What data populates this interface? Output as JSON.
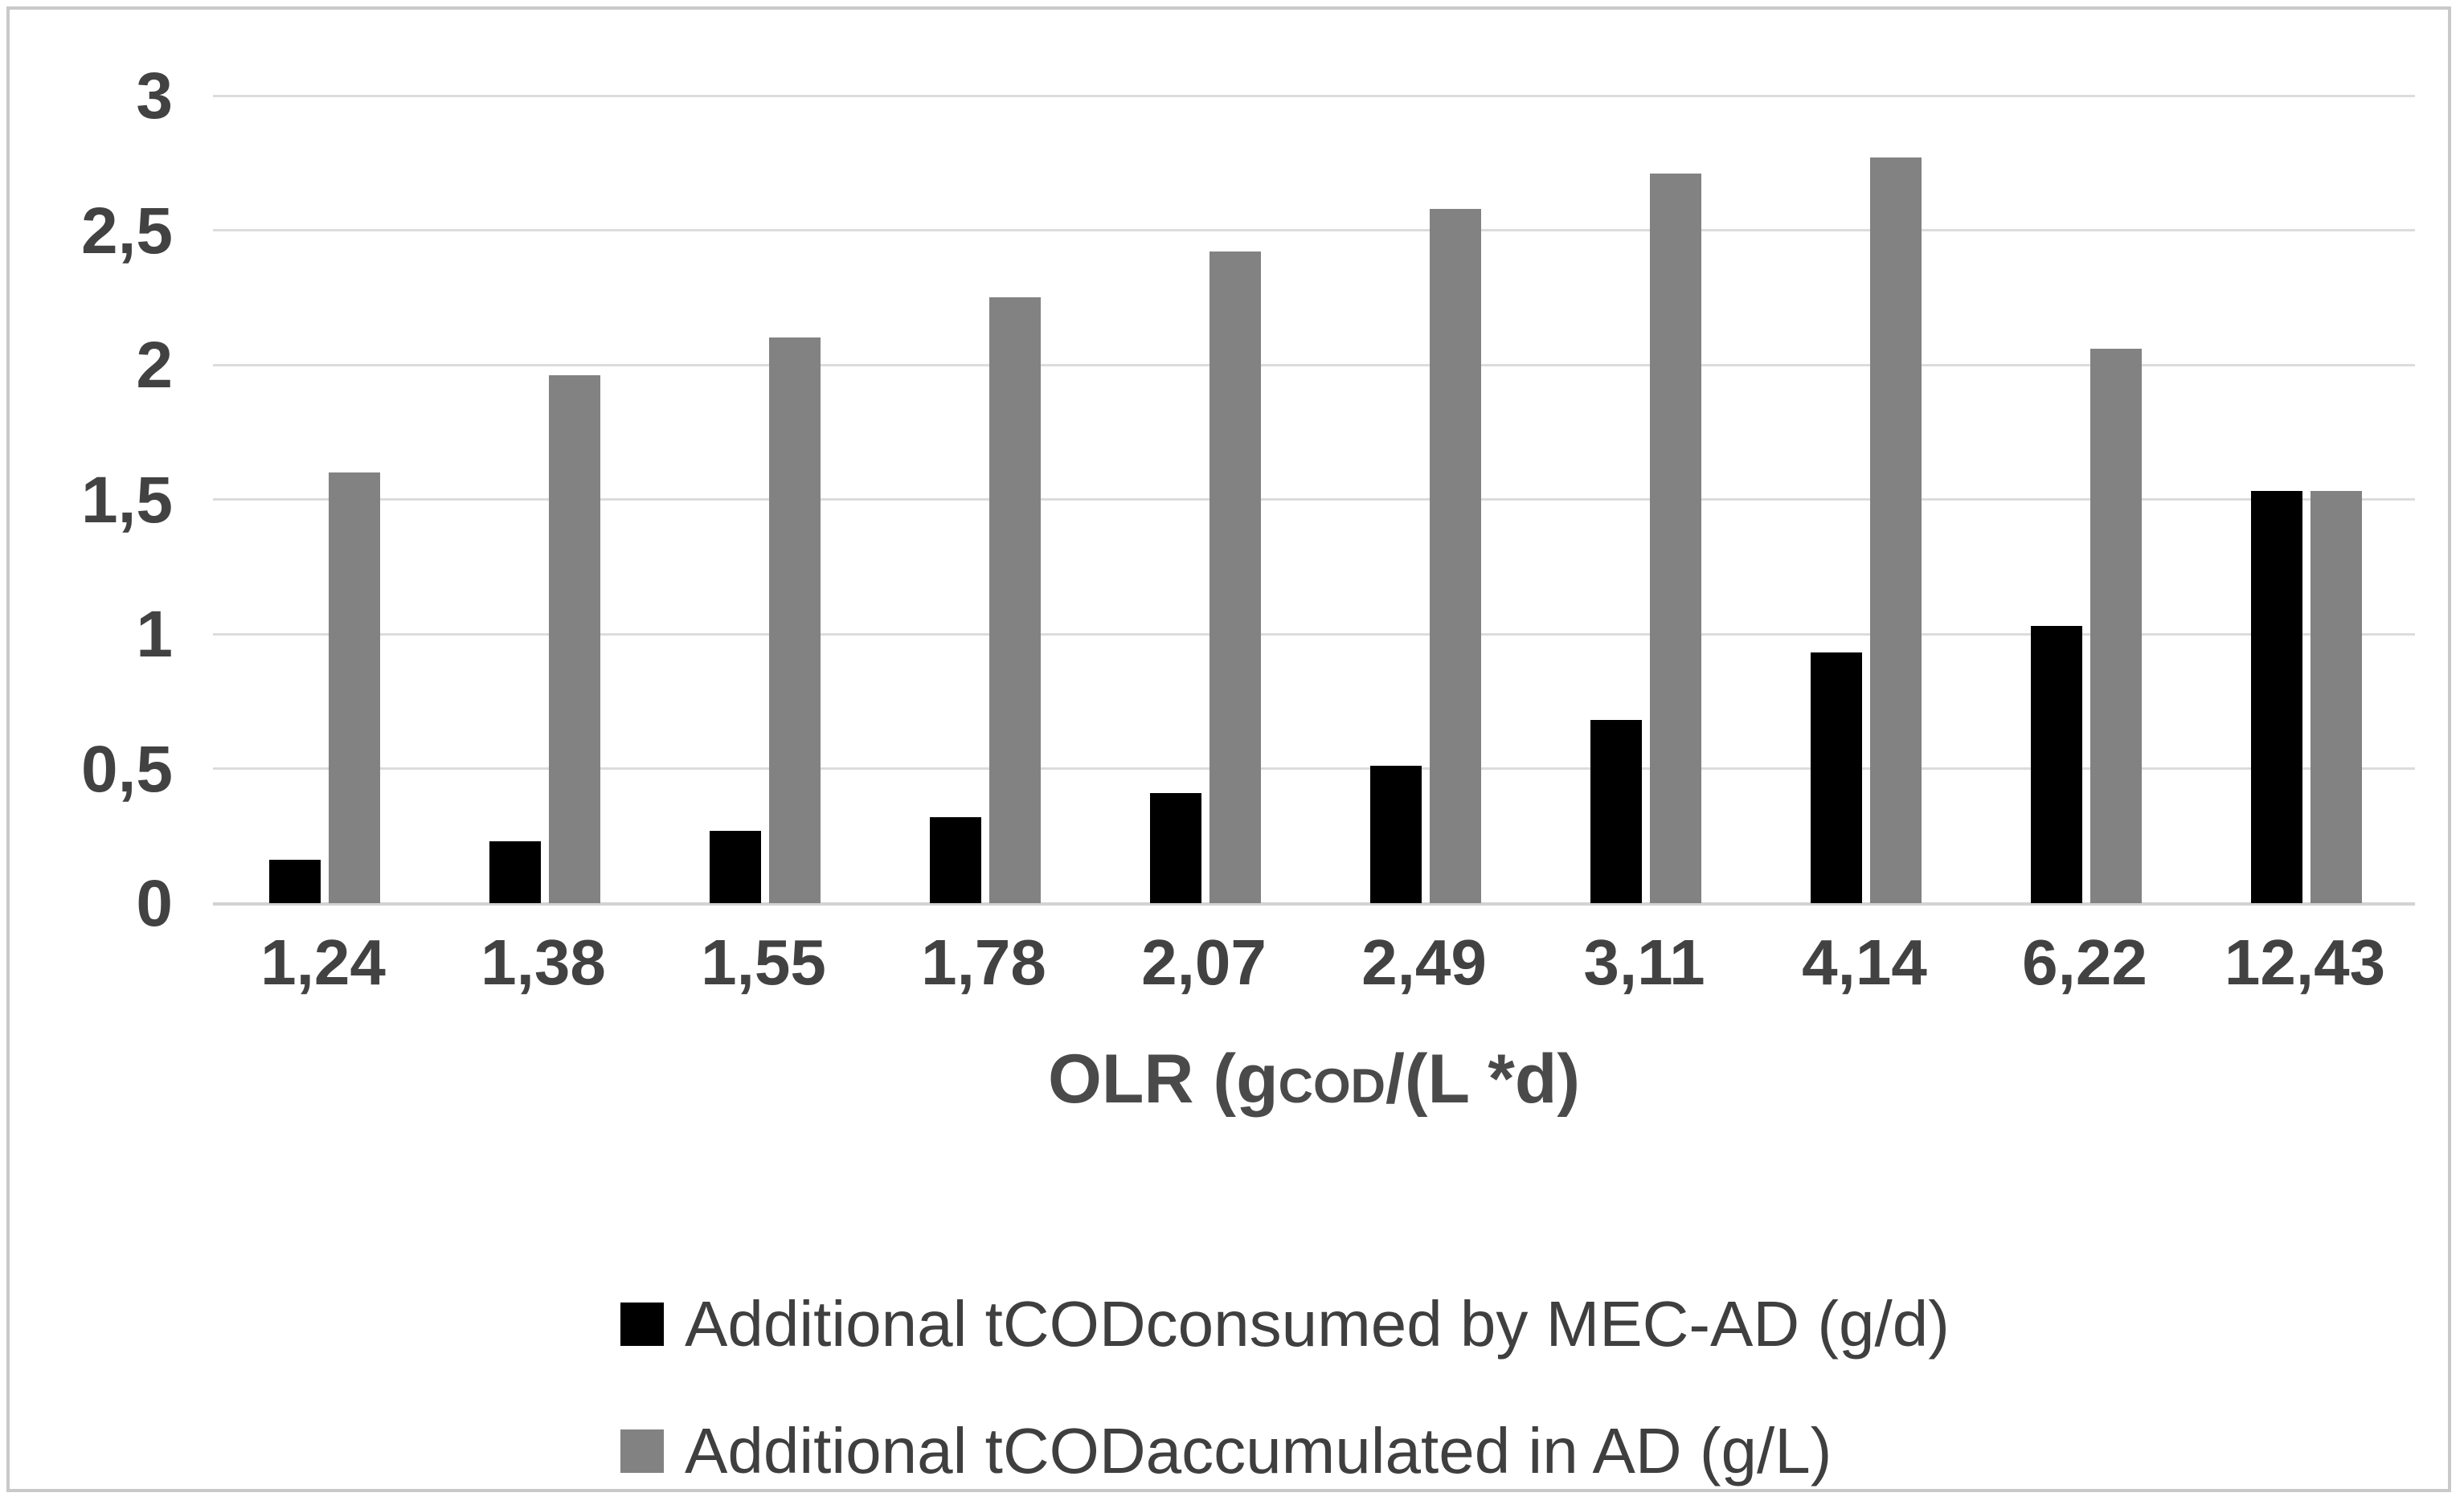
{
  "chart_data": {
    "type": "bar",
    "title": "",
    "categories": [
      "1,24",
      "1,38",
      "1,55",
      "1,78",
      "2,07",
      "2,49",
      "3,11",
      "4,14",
      "6,22",
      "12,43"
    ],
    "series": [
      {
        "name": "Additional tCODconsumed by MEC-AD (g/d)",
        "color": "#000000",
        "values": [
          0.16,
          0.23,
          0.27,
          0.32,
          0.41,
          0.51,
          0.68,
          0.93,
          1.03,
          1.53
        ]
      },
      {
        "name": "Additional tCODaccumulated in AD (g/L)",
        "color": "#828282",
        "values": [
          1.6,
          1.96,
          2.1,
          2.25,
          2.42,
          2.58,
          2.71,
          2.77,
          2.06,
          1.53
        ]
      }
    ],
    "xlabel": {
      "prefix": "OLR (g",
      "sub": "COD",
      "suffix": "/(L *d)"
    },
    "ylabel": "",
    "ylim": [
      0,
      3
    ],
    "ytick_step": 0.5,
    "yticks": [
      "0",
      "0,5",
      "1",
      "1,5",
      "2",
      "2,5",
      "3"
    ],
    "grid": true,
    "legend_position": "bottom-left",
    "decimal_separator": ",",
    "colors": {
      "gridline": "#dcdcdc",
      "axis_line": "#d2d2d2",
      "tick_text": "#424242",
      "legend_text": "#3f3f3f",
      "frame_border": "#c9c9c9",
      "background": "#ffffff"
    }
  }
}
